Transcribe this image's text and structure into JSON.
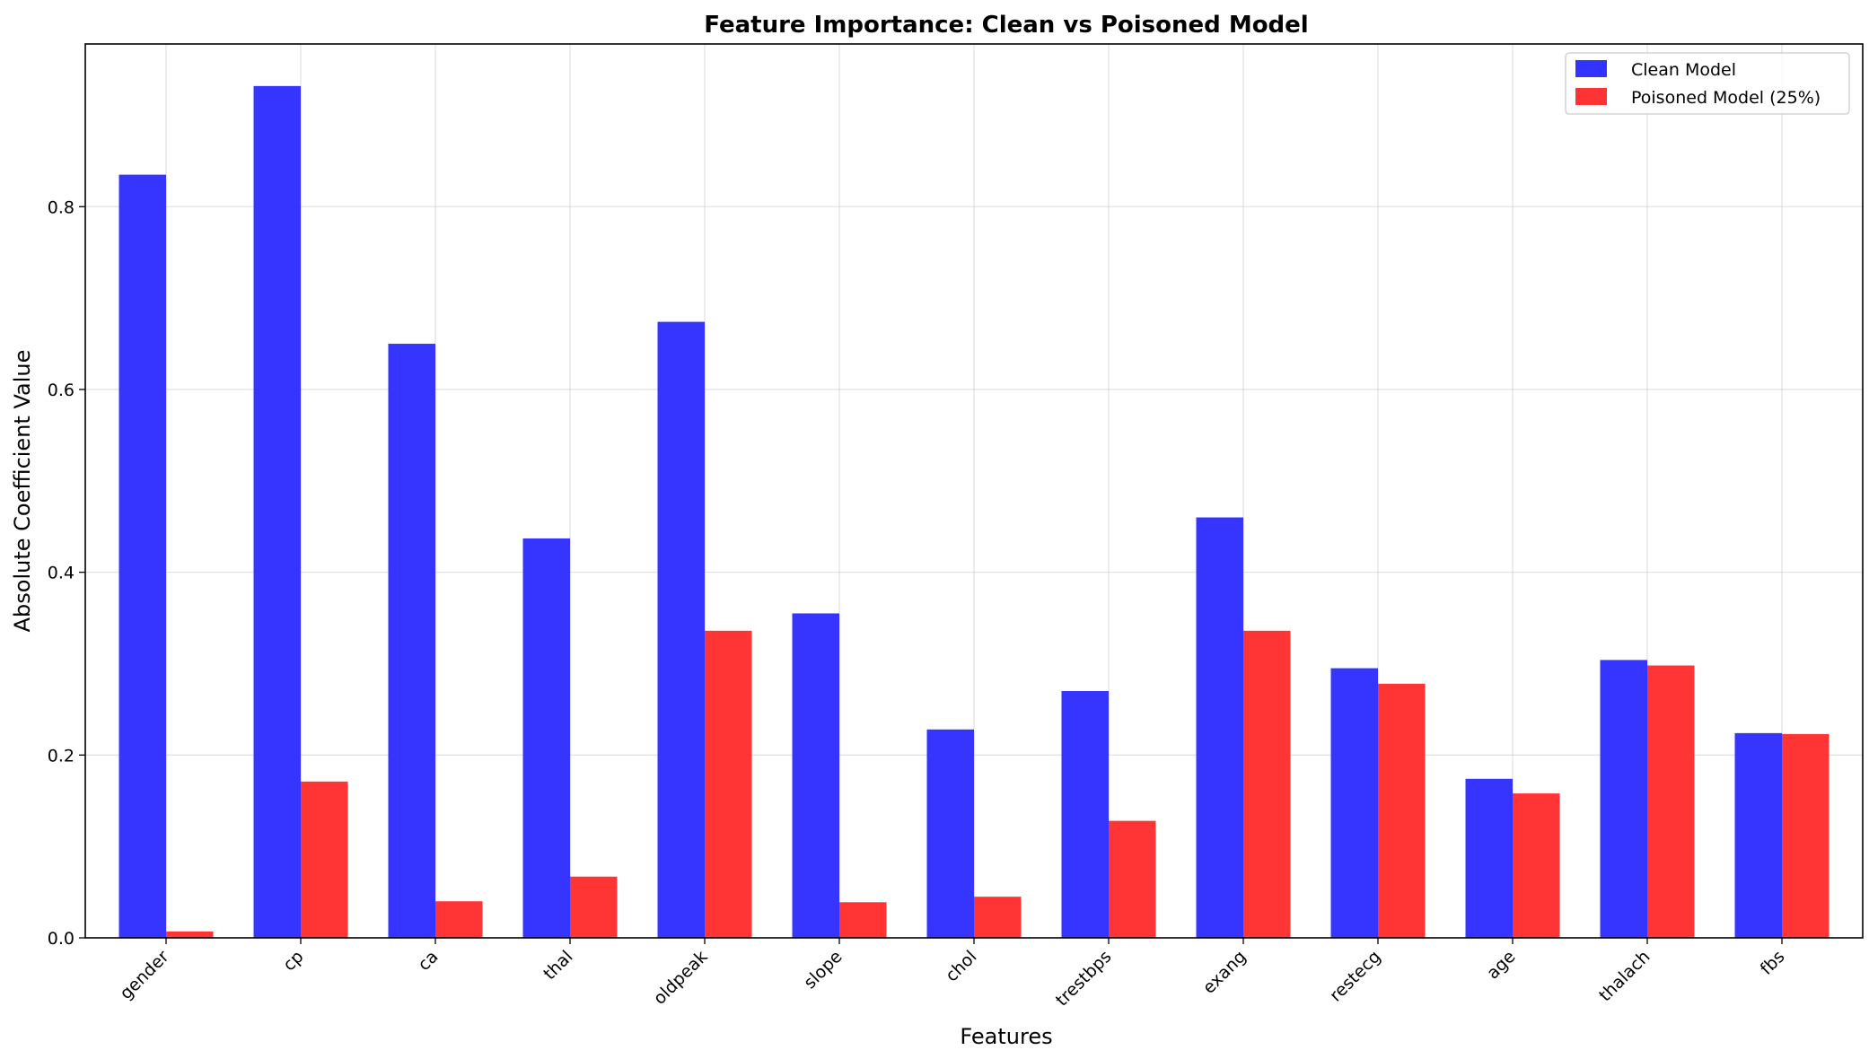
{
  "chart_data": {
    "type": "bar",
    "title": "Feature Importance: Clean vs Poisoned Model",
    "xlabel": "Features",
    "ylabel": "Absolute Coefficient Value",
    "categories": [
      "gender",
      "cp",
      "ca",
      "thal",
      "oldpeak",
      "slope",
      "chol",
      "trestbps",
      "exang",
      "restecg",
      "age",
      "thalach",
      "fbs"
    ],
    "series": [
      {
        "name": "Clean Model",
        "color": "#3333ff",
        "values": [
          0.835,
          0.932,
          0.65,
          0.437,
          0.674,
          0.355,
          0.228,
          0.27,
          0.46,
          0.295,
          0.174,
          0.304,
          0.224
        ]
      },
      {
        "name": "Poisoned Model (25%)",
        "color": "#ff3333",
        "values": [
          0.007,
          0.171,
          0.04,
          0.067,
          0.336,
          0.039,
          0.045,
          0.128,
          0.336,
          0.278,
          0.158,
          0.298,
          0.223
        ]
      }
    ],
    "ylim": [
      0,
      0.978
    ],
    "yticks": [
      "0.0",
      "0.2",
      "0.4",
      "0.6",
      "0.8"
    ],
    "grid": true,
    "legend_position": "top-right"
  }
}
